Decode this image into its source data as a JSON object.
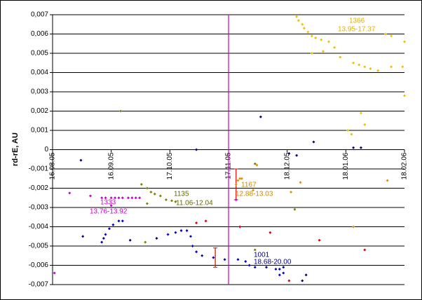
{
  "chart_data": {
    "type": "scatter",
    "y_label": "rd-rE, AU",
    "xlim": [
      38580,
      38766
    ],
    "xticks": [
      {
        "value": 38580,
        "label": "16.08.05"
      },
      {
        "value": 38611,
        "label": "16.09.05"
      },
      {
        "value": 38642,
        "label": "17.10.05"
      },
      {
        "value": 38673,
        "label": "17.11.05"
      },
      {
        "value": 38704,
        "label": "18.12.05"
      },
      {
        "value": 38735,
        "label": "18.01.06"
      },
      {
        "value": 38766,
        "label": "18.02.06"
      }
    ],
    "ylim": [
      -0.007,
      0.007
    ],
    "yticks": [
      {
        "value": -0.007,
        "label": "-0,007"
      },
      {
        "value": -0.006,
        "label": "-0,006"
      },
      {
        "value": -0.005,
        "label": "-0,005"
      },
      {
        "value": -0.004,
        "label": "-0,004"
      },
      {
        "value": -0.003,
        "label": "-0,003"
      },
      {
        "value": -0.002,
        "label": "-0,002"
      },
      {
        "value": -0.001,
        "label": "-0,001"
      },
      0,
      {
        "value": 0.001,
        "label": "0,001"
      },
      {
        "value": 0.002,
        "label": "0,002"
      },
      {
        "value": 0.003,
        "label": "0,003"
      },
      {
        "value": 0.004,
        "label": "0,004"
      },
      {
        "value": 0.005,
        "label": "0,005"
      },
      {
        "value": 0.006,
        "label": "0,006"
      },
      {
        "value": 0.007,
        "label": "0,007"
      }
    ],
    "grid": true,
    "reference_line": {
      "x": 38673,
      "color": "#cc00cc"
    },
    "series": [
      {
        "color": "#cc00cc",
        "x": [
          38581,
          38589,
          38600,
          38606,
          38608,
          38611,
          38613,
          38615,
          38617,
          38620,
          38622,
          38624,
          38626,
          38611,
          38677
        ],
        "values": [
          -0.0064,
          -0.00225,
          -0.0024,
          -0.0025,
          -0.0025,
          -0.0025,
          -0.0025,
          -0.0025,
          -0.0025,
          -0.0025,
          -0.0025,
          -0.0025,
          -0.0025,
          -0.0029,
          -0.0026
        ]
      },
      {
        "color": "#808000",
        "x": [
          38627,
          38630,
          38632,
          38634,
          38637,
          38640,
          38643,
          38645,
          38630,
          38629,
          38616,
          38687,
          38687,
          38708
        ],
        "values": [
          -0.0018,
          -0.002,
          -0.0022,
          -0.0023,
          -0.0024,
          -0.0026,
          -0.00265,
          -0.0027,
          -0.0028,
          -0.0048,
          0.002,
          -0.0052,
          -0.00073,
          -0.0031
        ]
      },
      {
        "color": "#0000cc",
        "x": [
          38606,
          38607,
          38608,
          38610,
          38612,
          38615,
          38617,
          38641,
          38645,
          38648,
          38651,
          38653,
          38654,
          38656,
          38659,
          38665,
          38671,
          38678,
          38682,
          38684,
          38687,
          38693,
          38698,
          38700,
          38702,
          38700,
          38702
        ],
        "values": [
          -0.0048,
          -0.0046,
          -0.0044,
          -0.0041,
          -0.0039,
          -0.0037,
          -0.0037,
          -0.0044,
          -0.0043,
          -0.0042,
          -0.0042,
          -0.0045,
          -0.005,
          -0.0053,
          -0.0055,
          -0.0056,
          -0.0057,
          -0.0057,
          -0.0058,
          -0.006,
          -0.0061,
          -0.0061,
          -0.0062,
          -0.0062,
          -0.0061,
          -0.0065,
          -0.0064
        ]
      },
      {
        "color": "#000080",
        "x": [
          38595,
          38596,
          38621,
          38635,
          38656,
          38690,
          38718,
          38709,
          38705,
          38739,
          38743,
          38712,
          38714
        ],
        "values": [
          -0.00055,
          -0.0045,
          -0.0047,
          -0.0046,
          0,
          0.0017,
          0.0004,
          -0.0003,
          -0.0002,
          0.0001,
          0.0001,
          -0.0068,
          -0.0065
        ]
      },
      {
        "color": "#e09000",
        "x": [
          38677,
          38679,
          38678,
          38680,
          38686,
          38688,
          38711,
          38739,
          38757,
          38706
        ],
        "values": [
          -0.0018,
          -0.0015,
          -0.0016,
          -0.0015,
          -0.0021,
          -0.0008,
          -0.0017,
          -0.004,
          -0.0016,
          -0.0022
        ]
      },
      {
        "color": "#e00000",
        "x": [
          38656,
          38661,
          38679,
          38695,
          38721,
          38745,
          38705
        ],
        "values": [
          -0.0038,
          -0.0037,
          -0.004,
          -0.0043,
          -0.0047,
          -0.0052,
          -0.0068
        ]
      },
      {
        "color": "#f0c000",
        "x": [
          38709,
          38710,
          38712,
          38713,
          38715,
          38717,
          38719,
          38722,
          38726,
          38717,
          38723,
          38729,
          38732,
          38742,
          38745,
          38748,
          38752,
          38739,
          38756,
          38759,
          38766,
          38759,
          38765,
          38736,
          38738,
          38743,
          38745,
          38766
        ],
        "values": [
          0.0069,
          0.0067,
          0.0065,
          0.0063,
          0.0061,
          0.0059,
          0.0058,
          0.0057,
          0.0056,
          0.005,
          0.0051,
          0.0053,
          0.0048,
          0.0044,
          0.0043,
          0.0042,
          0.0041,
          0.0045,
          0.006,
          0.0059,
          0.0056,
          0.0043,
          0.0043,
          0.001,
          0.0008,
          0.0019,
          0.0013,
          0.0028
        ]
      }
    ],
    "error_bars": [
      {
        "x": 38666,
        "low": -0.0061,
        "high": -0.0051,
        "color": "#e00000"
      },
      {
        "x": 38677,
        "low": -0.0026,
        "high": -0.001,
        "color": "#e00000"
      }
    ],
    "annotations": [
      {
        "text": "1366",
        "color": "#e0b000"
      },
      {
        "text": "13.95-17.37",
        "color": "#e0b000"
      },
      {
        "text": "1167",
        "color": "#cc8800"
      },
      {
        "text": "12.88-13.03",
        "color": "#cc8800"
      },
      {
        "text": "1135",
        "color": "#666600"
      },
      {
        "text": "11.06-12.04",
        "color": "#666600"
      },
      {
        "text": "1333",
        "color": "#cc00cc"
      },
      {
        "text": "13.76-13.92",
        "color": "#cc00cc"
      },
      {
        "text": "1001",
        "color": "#000080"
      },
      {
        "text": "18.68-20.00",
        "color": "#000080"
      }
    ]
  }
}
